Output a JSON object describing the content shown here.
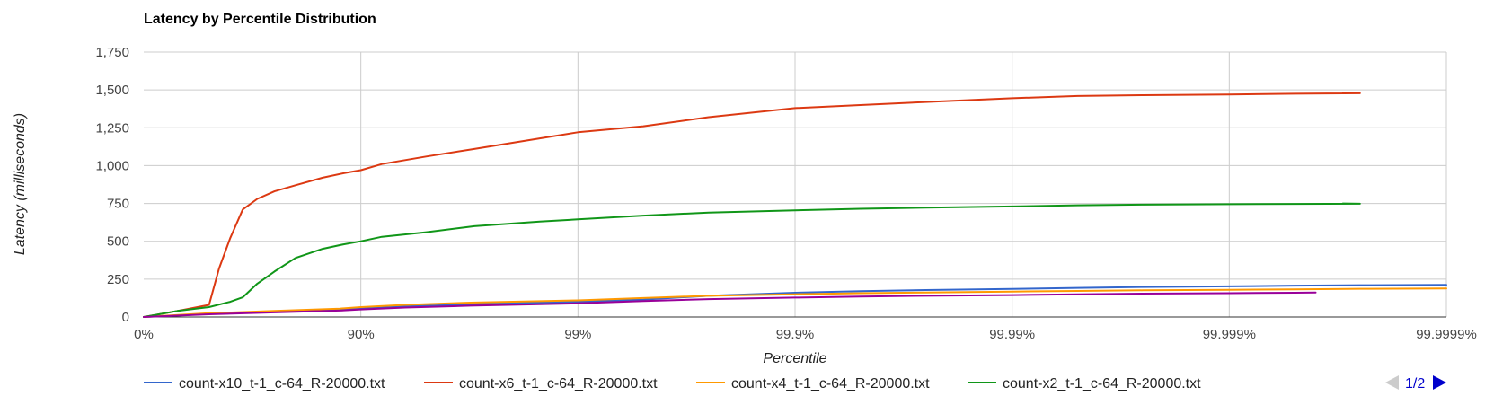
{
  "chart_data": {
    "type": "line",
    "title": "Latency by Percentile Distribution",
    "xlabel": "Percentile",
    "ylabel": "Latency (milliseconds)",
    "x_scale": "log-inverse-percentile",
    "x_ticks": [
      "0%",
      "90%",
      "99%",
      "99.9%",
      "99.99%",
      "99.999%",
      "99.9999%"
    ],
    "y_ticks": [
      "0",
      "250",
      "500",
      "750",
      "1,000",
      "1,250",
      "1,500",
      "1,750"
    ],
    "ylim": [
      0,
      1750
    ],
    "grid": true,
    "legend_position": "bottom",
    "pager": "1/2",
    "series": [
      {
        "name": "count-x10_t-1_c-64_R-20000.txt",
        "color": "#3366cc",
        "percentile": [
          0,
          50,
          75,
          87.5,
          90,
          93.75,
          96.875,
          99,
          99.5,
          99.75,
          99.9,
          99.95,
          99.975,
          99.99,
          99.995,
          99.9975,
          99.999,
          99.9995,
          99.99975,
          99.9999
        ],
        "latency": [
          0,
          20,
          35,
          48,
          55,
          70,
          85,
          100,
          115,
          140,
          160,
          170,
          178,
          185,
          192,
          198,
          202,
          207,
          210,
          212
        ]
      },
      {
        "name": "count-x6_t-1_c-64_R-20000.txt",
        "color": "#dc3912",
        "percentile": [
          0,
          30,
          50,
          55,
          60,
          65,
          70,
          75,
          80,
          85,
          88,
          90,
          92,
          95,
          97,
          98.5,
          99,
          99.5,
          99.75,
          99.9,
          99.95,
          99.975,
          99.99,
          99.995,
          99.9975,
          99.999,
          99.9995,
          99.99975,
          99.9997
        ],
        "latency": [
          0,
          40,
          80,
          320,
          520,
          710,
          780,
          830,
          870,
          920,
          950,
          970,
          1010,
          1060,
          1110,
          1180,
          1220,
          1260,
          1320,
          1380,
          1400,
          1420,
          1445,
          1460,
          1465,
          1470,
          1475,
          1478,
          1480
        ]
      },
      {
        "name": "count-x4_t-1_c-64_R-20000.txt",
        "color": "#ff9900",
        "percentile": [
          0,
          50,
          75,
          87.5,
          90,
          93.75,
          96.875,
          99,
          99.5,
          99.75,
          99.9,
          99.95,
          99.975,
          99.99,
          99.995,
          99.9975,
          99.999,
          99.9995,
          99.99975,
          99.9999
        ],
        "latency": [
          0,
          25,
          40,
          55,
          65,
          80,
          95,
          110,
          125,
          140,
          150,
          157,
          162,
          168,
          172,
          176,
          180,
          183,
          186,
          188
        ]
      },
      {
        "name": "count-x2_t-1_c-64_R-20000.txt",
        "color": "#109618",
        "percentile": [
          0,
          30,
          50,
          60,
          65,
          70,
          75,
          80,
          85,
          88,
          90,
          92,
          95,
          97,
          98.5,
          99,
          99.5,
          99.75,
          99.9,
          99.95,
          99.975,
          99.99,
          99.995,
          99.9975,
          99.999,
          99.9995,
          99.99975,
          99.9997
        ],
        "latency": [
          0,
          40,
          65,
          100,
          130,
          220,
          300,
          390,
          450,
          480,
          500,
          530,
          560,
          600,
          630,
          645,
          670,
          690,
          705,
          715,
          722,
          730,
          738,
          742,
          745,
          747,
          748,
          750
        ]
      },
      {
        "name": "",
        "color": "#990099",
        "percentile": [
          0,
          50,
          75,
          87.5,
          90,
          93.75,
          96.875,
          99,
          99.5,
          99.75,
          99.9,
          99.95,
          99.975,
          99.99,
          99.995,
          99.9975,
          99.999,
          99.9995,
          99.9996
        ],
        "latency": [
          0,
          18,
          30,
          42,
          50,
          62,
          75,
          90,
          105,
          118,
          128,
          135,
          140,
          145,
          150,
          154,
          157,
          160,
          162
        ]
      }
    ]
  }
}
